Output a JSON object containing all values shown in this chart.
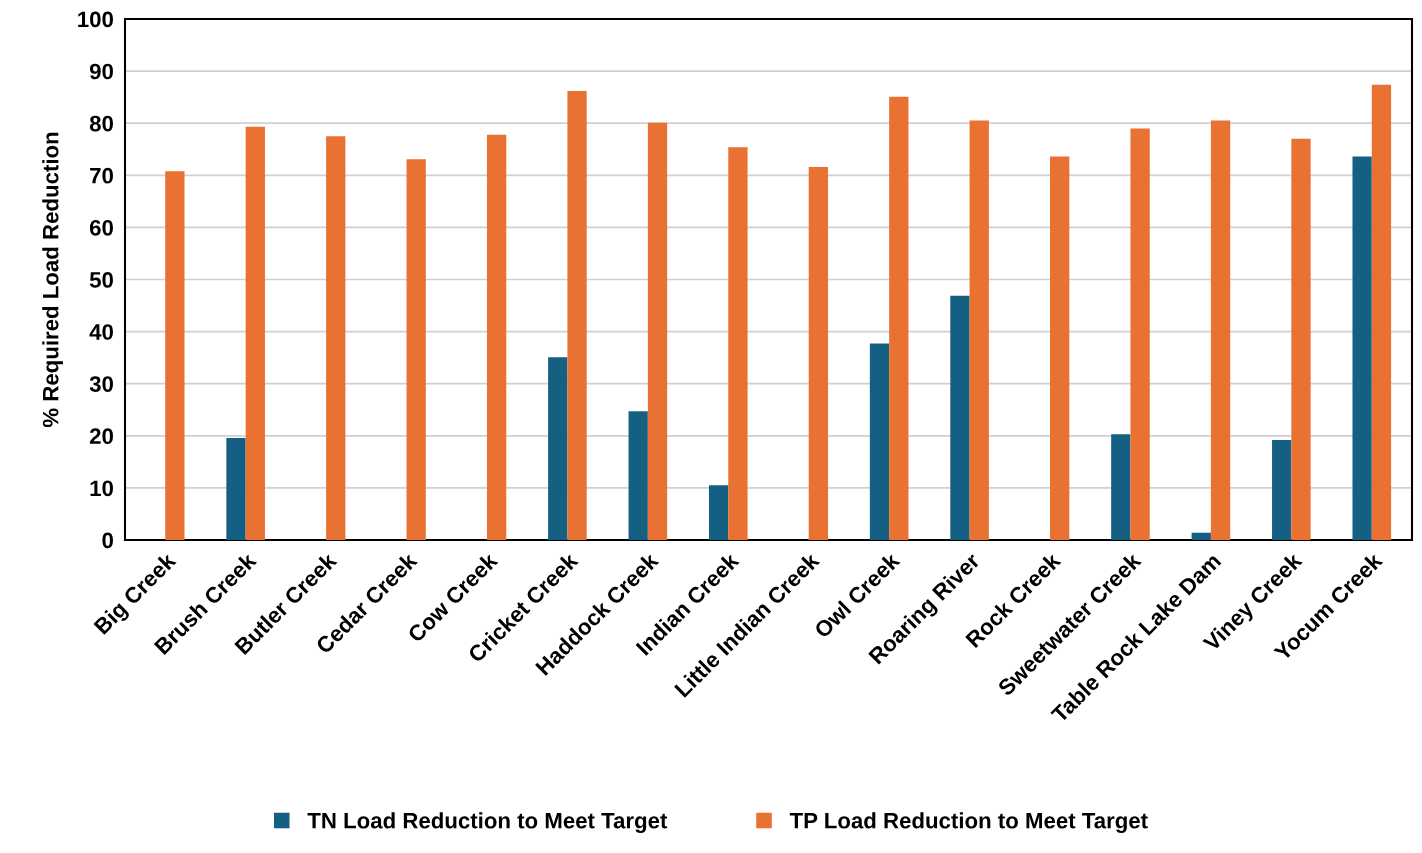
{
  "chart_data": {
    "type": "bar",
    "ylabel": "% Required Load Reduction",
    "categories": [
      "Big Creek",
      "Brush Creek",
      "Butler Creek",
      "Cedar Creek",
      "Cow Creek",
      "Cricket Creek",
      "Haddock Creek",
      "Indian Creek",
      "Little Indian Creek",
      "Owl Creek",
      "Roaring River",
      "Rock Creek",
      "Sweetwater Creek",
      "Table Rock Lake Dam",
      "Viney Creek",
      "Yocum Creek"
    ],
    "series": [
      {
        "name": "TN Load Reduction to Meet Target",
        "color": "#156082",
        "values": [
          null,
          19.6,
          null,
          null,
          null,
          35.1,
          24.7,
          10.5,
          null,
          37.7,
          46.9,
          null,
          20.3,
          1.4,
          19.2,
          73.6
        ]
      },
      {
        "name": "TP Load Reduction to Meet Target",
        "color": "#e97132",
        "values": [
          70.8,
          79.3,
          77.5,
          73.1,
          77.8,
          86.2,
          80.1,
          75.4,
          71.6,
          85.1,
          80.5,
          73.6,
          79.0,
          80.5,
          77.0,
          87.4
        ]
      }
    ],
    "ylim": [
      0,
      100
    ],
    "yticks": [
      0,
      10,
      20,
      30,
      40,
      50,
      60,
      70,
      80,
      90,
      100
    ],
    "grid": "y",
    "legend": "bottom"
  }
}
